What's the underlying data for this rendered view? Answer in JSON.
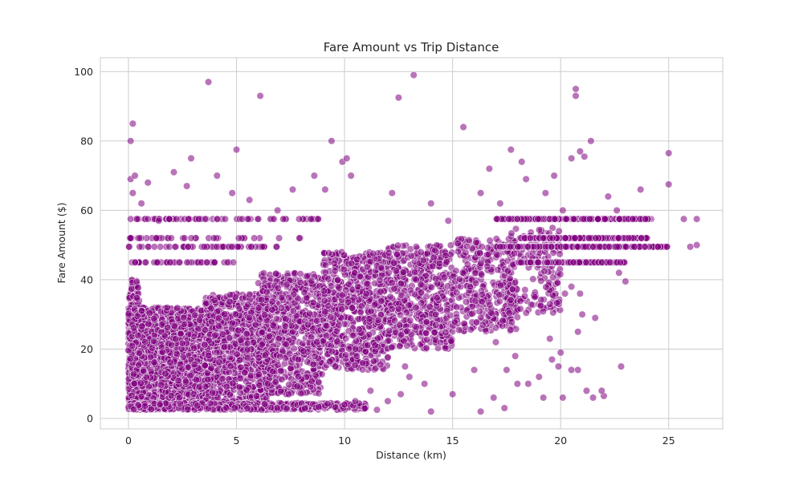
{
  "chart_data": {
    "type": "scatter",
    "title": "Fare Amount vs Trip Distance",
    "xlabel": "Distance (km)",
    "ylabel": "Fare Amount ($)",
    "xlim": [
      -1.3,
      27.5
    ],
    "ylim": [
      -3,
      104
    ],
    "xticks": [
      0,
      5,
      10,
      15,
      20,
      25
    ],
    "yticks": [
      0,
      20,
      40,
      60,
      80,
      100
    ],
    "grid": true,
    "point_color": "#800080",
    "point_edge_color": "#ffffff",
    "point_opacity": 0.55,
    "series": [
      {
        "points": [
          [
            0.1,
            80
          ],
          [
            0.2,
            85
          ],
          [
            0.1,
            69
          ],
          [
            0.3,
            70
          ],
          [
            0.2,
            65
          ],
          [
            0.6,
            62
          ],
          [
            0.9,
            68
          ],
          [
            0.1,
            57.5
          ],
          [
            0.4,
            57.5
          ],
          [
            0.9,
            57.5
          ],
          [
            0.1,
            52
          ],
          [
            0.5,
            52
          ],
          [
            1.2,
            49.5
          ],
          [
            0.3,
            45
          ],
          [
            0.8,
            45
          ],
          [
            1.4,
            57
          ],
          [
            2.1,
            71
          ],
          [
            2.9,
            75
          ],
          [
            2.7,
            67
          ],
          [
            3.7,
            97
          ],
          [
            4.1,
            70
          ],
          [
            4.8,
            65
          ],
          [
            5.0,
            77.5
          ],
          [
            6.1,
            93
          ],
          [
            5.6,
            63
          ],
          [
            6.9,
            60
          ],
          [
            7.6,
            66
          ],
          [
            8.6,
            70
          ],
          [
            9.1,
            66
          ],
          [
            9.4,
            80
          ],
          [
            9.9,
            74
          ],
          [
            10.1,
            75
          ],
          [
            10.3,
            70
          ],
          [
            12.2,
            65
          ],
          [
            12.5,
            92.5
          ],
          [
            13.2,
            99
          ],
          [
            14.0,
            62
          ],
          [
            14.8,
            57
          ],
          [
            15.5,
            84
          ],
          [
            16.3,
            65
          ],
          [
            16.7,
            72
          ],
          [
            17.2,
            62
          ],
          [
            17.7,
            77.5
          ],
          [
            18.2,
            74
          ],
          [
            18.4,
            69
          ],
          [
            19.3,
            65
          ],
          [
            19.7,
            70
          ],
          [
            20.1,
            60
          ],
          [
            20.5,
            75
          ],
          [
            20.7,
            93
          ],
          [
            20.7,
            95
          ],
          [
            20.9,
            77
          ],
          [
            21.1,
            75.5
          ],
          [
            21.4,
            80
          ],
          [
            22.2,
            64
          ],
          [
            22.6,
            60
          ],
          [
            23.7,
            66
          ],
          [
            25.0,
            76.5
          ],
          [
            25.0,
            67.5
          ],
          [
            26.3,
            57.5
          ],
          [
            25.7,
            57.5
          ],
          [
            26.0,
            49.5
          ],
          [
            26.3,
            50
          ],
          [
            22.7,
            42
          ],
          [
            23.0,
            39.5
          ],
          [
            20.2,
            36
          ],
          [
            20.5,
            38
          ],
          [
            20.9,
            36
          ],
          [
            19.5,
            33
          ],
          [
            18.8,
            35
          ],
          [
            17.5,
            14
          ],
          [
            18.0,
            10
          ],
          [
            17.9,
            18
          ],
          [
            17.0,
            22
          ],
          [
            19.5,
            23
          ],
          [
            19.6,
            17
          ],
          [
            20.0,
            19
          ],
          [
            19.9,
            15
          ],
          [
            20.5,
            14
          ],
          [
            20.8,
            14
          ],
          [
            21.2,
            8
          ],
          [
            21.0,
            30
          ],
          [
            21.6,
            29
          ],
          [
            20.8,
            25
          ],
          [
            19.0,
            12
          ],
          [
            18.5,
            10
          ],
          [
            19.2,
            6
          ],
          [
            20.1,
            6
          ],
          [
            21.5,
            6
          ],
          [
            22.0,
            6.5
          ],
          [
            16.9,
            6
          ],
          [
            17.4,
            3
          ],
          [
            16.3,
            2
          ],
          [
            16.0,
            14
          ],
          [
            15.0,
            7
          ],
          [
            14.0,
            2
          ],
          [
            13.7,
            10
          ],
          [
            13.0,
            12
          ],
          [
            12.8,
            15
          ],
          [
            12.6,
            7
          ],
          [
            12.0,
            5
          ],
          [
            11.5,
            2.5
          ],
          [
            11.2,
            8
          ],
          [
            10.5,
            5
          ],
          [
            10.0,
            4
          ],
          [
            22.8,
            15
          ],
          [
            21.9,
            8
          ]
        ],
        "clusters": [
          {
            "x_range": [
              0.0,
              0.5
            ],
            "y_range": [
              2.5,
              40
            ],
            "count": 380
          },
          {
            "x_range": [
              0.0,
              2.0
            ],
            "y_range": [
              2.5,
              32
            ],
            "count": 900
          },
          {
            "x_range": [
              1.5,
              4.0
            ],
            "y_range": [
              3,
              32
            ],
            "count": 900
          },
          {
            "x_range": [
              3.5,
              6.5
            ],
            "y_range": [
              4,
              36
            ],
            "count": 850
          },
          {
            "x_range": [
              6.0,
              9.0
            ],
            "y_range": [
              7,
              42
            ],
            "count": 700
          },
          {
            "x_range": [
              9.0,
              12.0
            ],
            "y_range": [
              14,
              48
            ],
            "count": 650
          },
          {
            "x_range": [
              12.0,
              15.0
            ],
            "y_range": [
              20,
              50
            ],
            "count": 500
          },
          {
            "x_range": [
              15.0,
              18.0
            ],
            "y_range": [
              25,
              52
            ],
            "count": 350
          },
          {
            "x_range": [
              17.5,
              20.0
            ],
            "y_range": [
              30,
              55
            ],
            "count": 170
          },
          {
            "x_range": [
              0.0,
              11.0
            ],
            "y_range": [
              2.5,
              4.5
            ],
            "count": 500
          }
        ],
        "flat_bands": [
          {
            "y": 57.5,
            "x_range": [
              17.0,
              24.2
            ],
            "count": 240
          },
          {
            "y": 52,
            "x_range": [
              18.0,
              24.0
            ],
            "count": 200
          },
          {
            "y": 49.5,
            "x_range": [
              17.0,
              25.0
            ],
            "count": 220
          },
          {
            "y": 45,
            "x_range": [
              18.0,
              23.0
            ],
            "count": 180
          },
          {
            "y": 57.5,
            "x_range": [
              0.0,
              9.0
            ],
            "count": 60
          },
          {
            "y": 49.5,
            "x_range": [
              0.0,
              7.0
            ],
            "count": 50
          },
          {
            "y": 45,
            "x_range": [
              0.0,
              5.0
            ],
            "count": 40
          },
          {
            "y": 52,
            "x_range": [
              0.0,
              8.0
            ],
            "count": 35
          }
        ]
      }
    ]
  }
}
